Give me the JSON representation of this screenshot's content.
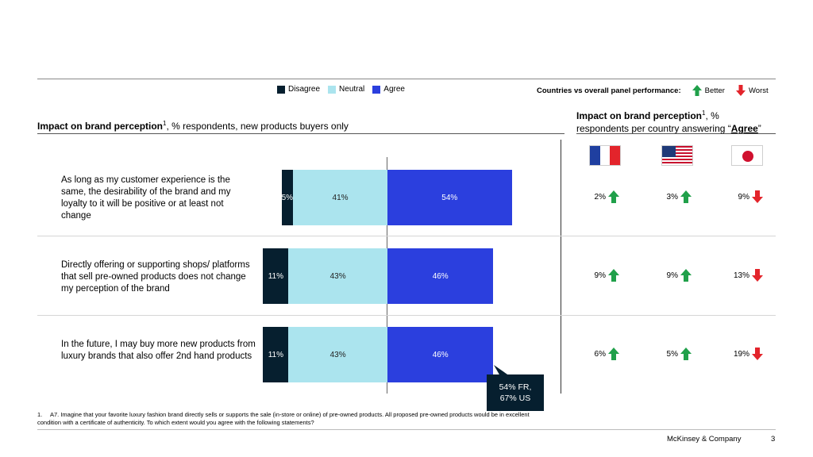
{
  "legend": {
    "disagree": "Disagree",
    "neutral": "Neutral",
    "agree": "Agree"
  },
  "colors": {
    "disagree": "#061f2f",
    "neutral": "#abe4ee",
    "agree": "#2b3fde",
    "better": "#20a04a",
    "worst": "#e3242b"
  },
  "panel_performance": {
    "label": "Countries vs overall panel performance:",
    "better": "Better",
    "worst": "Worst"
  },
  "left_title": {
    "bold": "Impact on brand perception",
    "sup": "1",
    "rest": ", % respondents, new products buyers only"
  },
  "right_title": {
    "bold": "Impact on brand perception",
    "sup": "1",
    "rest": ", %",
    "line2_prefix": "respondents per country answering “",
    "line2_emph": "Agree",
    "line2_suffix": "”"
  },
  "countries": [
    {
      "name": "France",
      "icon": "flag-france-icon"
    },
    {
      "name": "United States",
      "icon": "flag-usa-icon"
    },
    {
      "name": "Japan",
      "icon": "flag-japan-icon"
    }
  ],
  "chart_data": {
    "type": "bar",
    "orientation": "horizontal-stacked-diverging",
    "categories": [
      "As long as my customer experience is the same, the desirability of the brand and my loyalty to it will be positive or at least not change",
      "Directly offering or supporting shops/ platforms that sell pre-owned products does not change my perception of the brand",
      "In the future, I may buy more new products from luxury brands that also offer 2nd hand products"
    ],
    "series": [
      {
        "name": "Disagree",
        "values": [
          5,
          11,
          11
        ],
        "labels": [
          "5%",
          "11%",
          "11%"
        ]
      },
      {
        "name": "Neutral",
        "values": [
          41,
          43,
          43
        ],
        "labels": [
          "41%",
          "43%",
          "43%"
        ]
      },
      {
        "name": "Agree",
        "values": [
          54,
          46,
          46
        ],
        "labels": [
          "54%",
          "46%",
          "46%"
        ]
      }
    ],
    "annotation": "54% FR,\n67% US"
  },
  "statements": [
    "As long as my customer experience is the same, the desirability of the brand and my loyalty to it will be positive or at least not change",
    "Directly offering or supporting shops/ platforms that sell pre-owned products does not change my perception of the brand",
    "In the future, I may buy more new products from luxury brands that also offer 2nd hand products"
  ],
  "country_values": [
    [
      {
        "v": "2%",
        "dir": "better"
      },
      {
        "v": "3%",
        "dir": "better"
      },
      {
        "v": "9%",
        "dir": "worst"
      }
    ],
    [
      {
        "v": "9%",
        "dir": "better"
      },
      {
        "v": "9%",
        "dir": "better"
      },
      {
        "v": "13%",
        "dir": "worst"
      }
    ],
    [
      {
        "v": "6%",
        "dir": "better"
      },
      {
        "v": "5%",
        "dir": "better"
      },
      {
        "v": "19%",
        "dir": "worst"
      }
    ]
  ],
  "footnote": {
    "num": "1.",
    "text": "A7. Imagine that your favorite luxury fashion brand directly sells or supports the sale (in-store or online) of pre-owned products. All proposed pre-owned products would be in excellent condition with a certificate of authenticity. To which extent would you agree with the following statements?"
  },
  "footer": {
    "company": "McKinsey & Company",
    "page": "3"
  }
}
